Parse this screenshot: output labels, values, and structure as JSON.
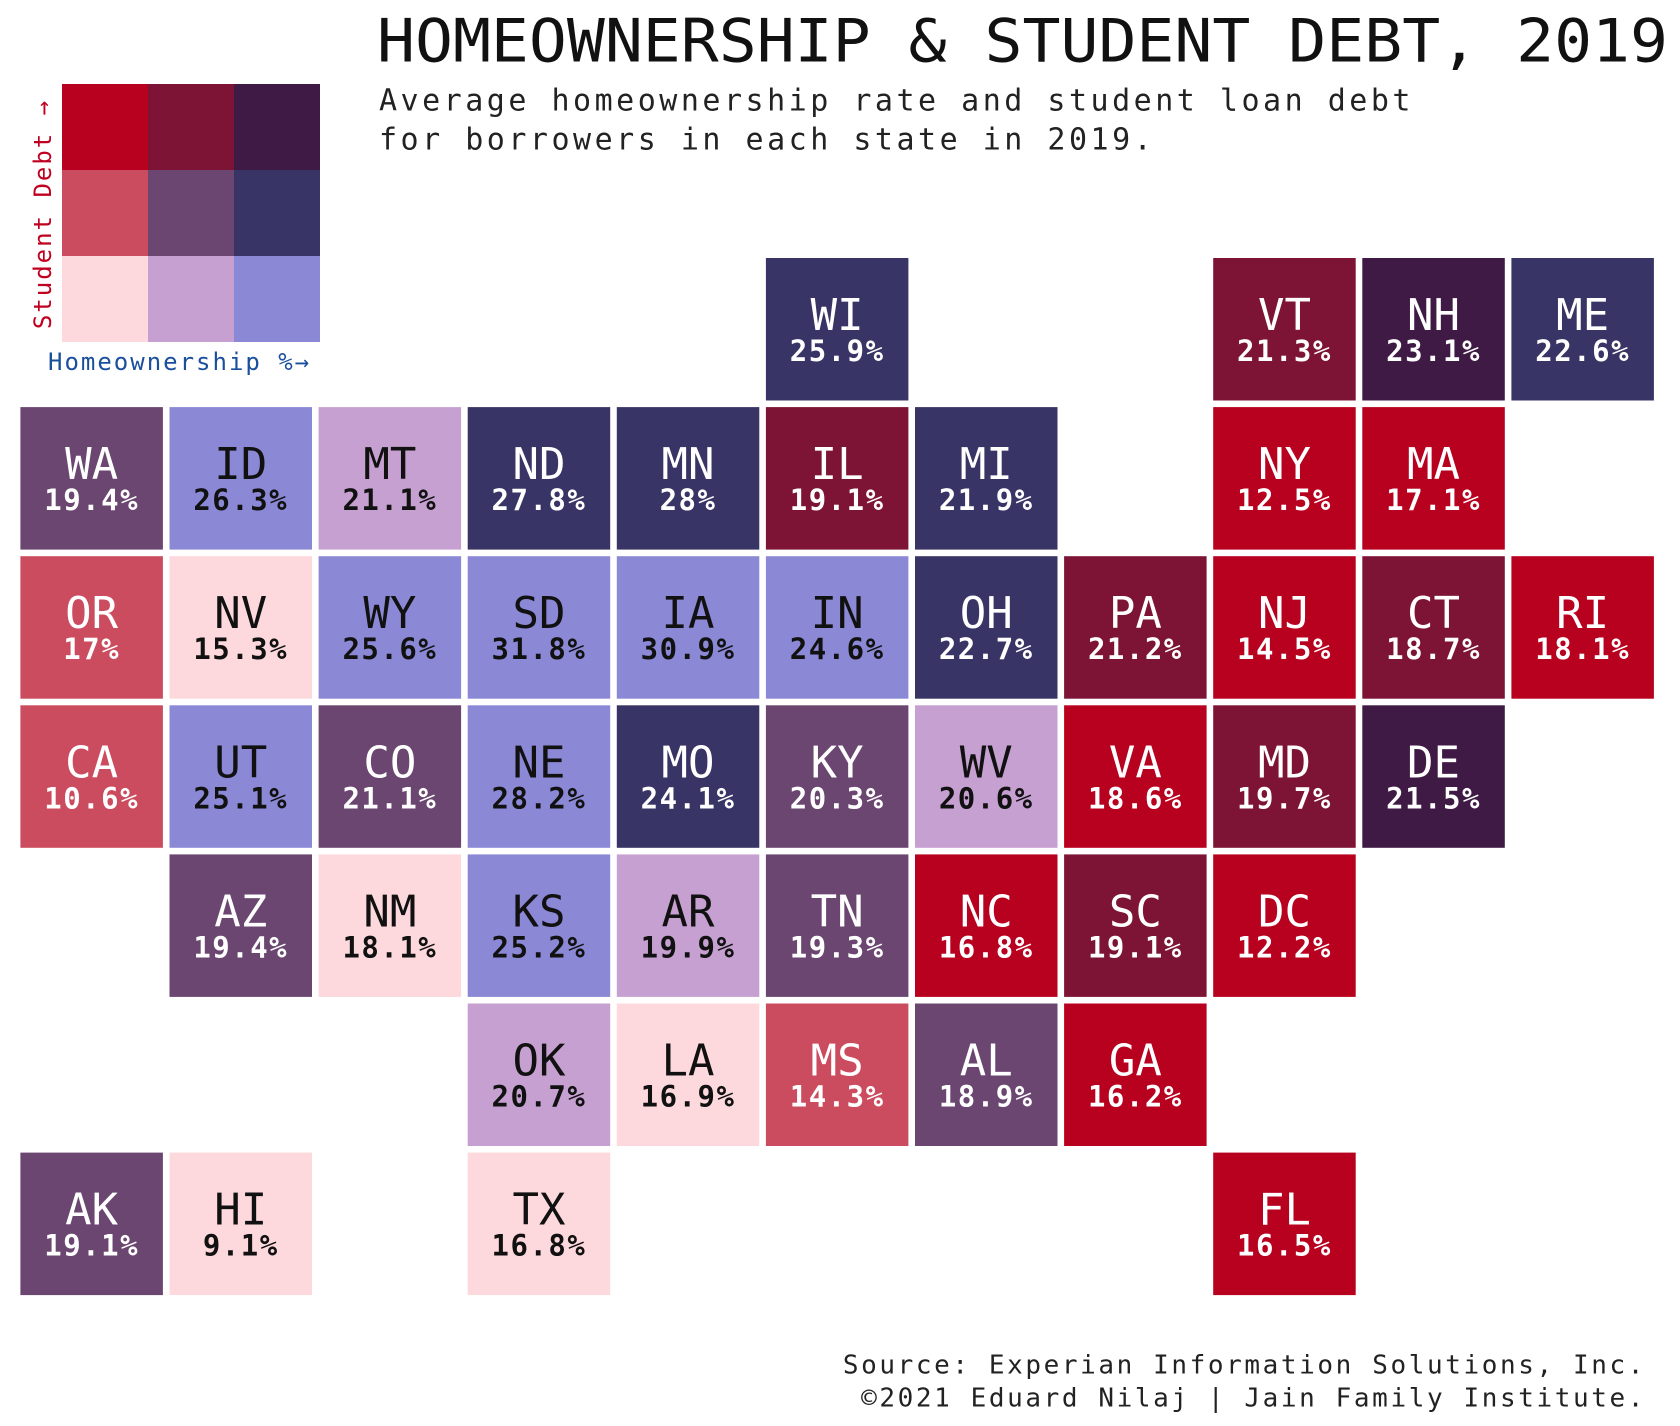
{
  "chart_data": {
    "type": "tilemap",
    "title": "HOMEOWNERSHIP & STUDENT DEBT, 2019",
    "subtitle": [
      "Average homeownership rate and student loan debt",
      "for borrowers in each state in 2019."
    ],
    "legend_y_label": "Student Debt →",
    "legend_x_label": "Homeownership %→",
    "legend_colors": [
      [
        "#b8001f",
        "#7d1436",
        "#3f1a44"
      ],
      [
        "#cc4c5f",
        "#6a4670",
        "#383465"
      ],
      [
        "#fdd9dd",
        "#c7a0d2",
        "#8b88d6"
      ]
    ],
    "categories": [
      "WI",
      "VT",
      "NH",
      "ME",
      "WA",
      "ID",
      "MT",
      "ND",
      "MN",
      "IL",
      "MI",
      "NY",
      "MA",
      "OR",
      "NV",
      "WY",
      "SD",
      "IA",
      "IN",
      "OH",
      "PA",
      "NJ",
      "CT",
      "RI",
      "CA",
      "UT",
      "CO",
      "NE",
      "MO",
      "KY",
      "WV",
      "VA",
      "MD",
      "DE",
      "AZ",
      "NM",
      "KS",
      "AR",
      "TN",
      "NC",
      "SC",
      "DC",
      "OK",
      "LA",
      "MS",
      "AL",
      "GA",
      "AK",
      "HI",
      "TX",
      "FL"
    ],
    "values": [
      25.9,
      21.3,
      23.1,
      22.6,
      19.4,
      26.3,
      21.1,
      27.8,
      28,
      19.1,
      21.9,
      12.5,
      17.1,
      17,
      15.3,
      25.6,
      31.8,
      30.9,
      24.6,
      22.7,
      21.2,
      14.5,
      18.7,
      18.1,
      10.6,
      25.1,
      21.1,
      28.2,
      24.1,
      20.3,
      20.6,
      18.6,
      19.7,
      21.5,
      19.4,
      18.1,
      25.2,
      19.9,
      19.3,
      16.8,
      19.1,
      12.2,
      20.7,
      16.9,
      14.3,
      18.9,
      16.2,
      19.1,
      9.1,
      16.8,
      16.5
    ],
    "value_labels": [
      "25.9%",
      "21.3%",
      "23.1%",
      "22.6%",
      "19.4%",
      "26.3%",
      "21.1%",
      "27.8%",
      "28%",
      "19.1%",
      "21.9%",
      "12.5%",
      "17.1%",
      "17%",
      "15.3%",
      "25.6%",
      "31.8%",
      "30.9%",
      "24.6%",
      "22.7%",
      "21.2%",
      "14.5%",
      "18.7%",
      "18.1%",
      "10.6%",
      "25.1%",
      "21.1%",
      "28.2%",
      "24.1%",
      "20.3%",
      "20.6%",
      "18.6%",
      "19.7%",
      "21.5%",
      "19.4%",
      "18.1%",
      "25.2%",
      "19.9%",
      "19.3%",
      "16.8%",
      "19.1%",
      "12.2%",
      "20.7%",
      "16.9%",
      "14.3%",
      "18.9%",
      "16.2%",
      "19.1%",
      "9.1%",
      "16.8%",
      "16.5%"
    ],
    "colors": [
      "#383465",
      "#7d1436",
      "#3f1a44",
      "#383465",
      "#6a4670",
      "#8b88d6",
      "#c7a0d2",
      "#383465",
      "#383465",
      "#7d1436",
      "#383465",
      "#b8001f",
      "#b8001f",
      "#cc4c5f",
      "#fdd9dd",
      "#8b88d6",
      "#8b88d6",
      "#8b88d6",
      "#8b88d6",
      "#383465",
      "#7d1436",
      "#b8001f",
      "#7d1436",
      "#b8001f",
      "#cc4c5f",
      "#8b88d6",
      "#6a4670",
      "#8b88d6",
      "#383465",
      "#6a4670",
      "#c7a0d2",
      "#b8001f",
      "#7d1436",
      "#3f1a44",
      "#6a4670",
      "#fdd9dd",
      "#8b88d6",
      "#c7a0d2",
      "#6a4670",
      "#b8001f",
      "#7d1436",
      "#b8001f",
      "#c7a0d2",
      "#fdd9dd",
      "#cc4c5f",
      "#6a4670",
      "#b8001f",
      "#6a4670",
      "#fdd9dd",
      "#fdd9dd",
      "#b8001f"
    ],
    "source": [
      "Source: Experian Information Solutions, Inc.",
      "©2021 Eduard Nilaj | Jain Family Institute."
    ]
  }
}
